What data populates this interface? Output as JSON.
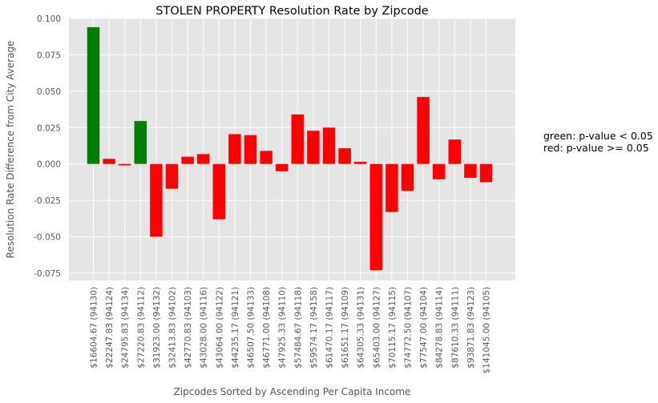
{
  "chart_data": {
    "type": "bar",
    "title": "STOLEN PROPERTY Resolution Rate by Zipcode",
    "xlabel": "Zipcodes Sorted by Ascending Per Capita Income",
    "ylabel": "Resolution Rate Difference from City Average",
    "ylim": [
      -0.08,
      0.1
    ],
    "yticks": [
      "0.100",
      "0.075",
      "0.050",
      "0.025",
      "0.000",
      "-0.025",
      "-0.050",
      "-0.075"
    ],
    "grid": true,
    "categories": [
      "$16604.67 (94130)",
      "$22247.83 (94124)",
      "$24795.83 (94134)",
      "$27220.83 (94112)",
      "$31923.00 (94132)",
      "$32413.83 (94102)",
      "$42770.83 (94103)",
      "$43028.00 (94116)",
      "$43064.00 (94122)",
      "$44235.17 (94121)",
      "$46507.50 (94133)",
      "$46771.00 (94108)",
      "$47925.33 (94110)",
      "$57484.67 (94118)",
      "$59574.17 (94158)",
      "$61470.17 (94117)",
      "$61651.17 (94109)",
      "$64305.33 (94131)",
      "$65403.00 (94127)",
      "$70115.17 (94115)",
      "$74772.50 (94107)",
      "$77547.00 (94104)",
      "$84278.83 (94114)",
      "$87610.33 (94111)",
      "$93871.83 (94123)",
      "$141045.00 (94105)"
    ],
    "values": [
      0.094,
      0.0035,
      -0.001,
      0.0295,
      -0.05,
      -0.017,
      0.005,
      0.0068,
      -0.038,
      0.0205,
      0.0198,
      0.009,
      -0.005,
      0.034,
      0.0228,
      0.025,
      0.0108,
      0.0015,
      -0.073,
      -0.033,
      -0.0185,
      0.046,
      -0.0105,
      0.0168,
      -0.0095,
      -0.0125
    ],
    "significant": [
      true,
      false,
      false,
      true,
      false,
      false,
      false,
      false,
      false,
      false,
      false,
      false,
      false,
      false,
      false,
      false,
      false,
      false,
      false,
      false,
      false,
      false,
      false,
      false,
      false,
      false
    ],
    "colors": {
      "significant": "#008000",
      "not_significant": "#ff0000",
      "background": "#e5e5e5",
      "grid": "#ffffff"
    },
    "annotations": [
      "green: p-value < 0.05",
      "red: p-value >= 0.05"
    ]
  }
}
